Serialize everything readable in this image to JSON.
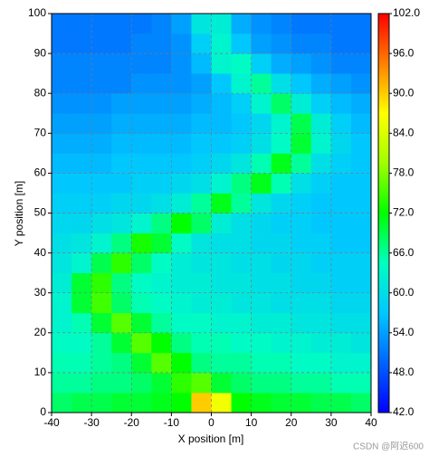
{
  "chart_data": {
    "type": "heatmap",
    "x_label": "X position [m]",
    "y_label": "Y position [m]",
    "x_edges": [
      -40,
      -35,
      -30,
      -25,
      -20,
      -15,
      -10,
      -5,
      0,
      5,
      10,
      15,
      20,
      25,
      30,
      35,
      40
    ],
    "y_edges": [
      0,
      5,
      10,
      15,
      20,
      25,
      30,
      35,
      40,
      45,
      50,
      55,
      60,
      65,
      70,
      75,
      80,
      85,
      90,
      95,
      100
    ],
    "z": [
      [
        68,
        69,
        69,
        70,
        70,
        71,
        72,
        90,
        86,
        72,
        71,
        70,
        70,
        69,
        69,
        68
      ],
      [
        66,
        66,
        67,
        67,
        68,
        70,
        74,
        76,
        70,
        68,
        67,
        67,
        66,
        66,
        65,
        65
      ],
      [
        65,
        65,
        66,
        67,
        70,
        76,
        72,
        67,
        66,
        66,
        65,
        65,
        64,
        64,
        63,
        63
      ],
      [
        64,
        64,
        66,
        70,
        76,
        72,
        67,
        65,
        65,
        64,
        64,
        63,
        63,
        62,
        62,
        61
      ],
      [
        63,
        65,
        70,
        76,
        70,
        66,
        64,
        64,
        63,
        63,
        62,
        62,
        61,
        61,
        60,
        60
      ],
      [
        63,
        70,
        75,
        68,
        65,
        64,
        63,
        62,
        62,
        61,
        61,
        60,
        60,
        60,
        59,
        59
      ],
      [
        62,
        70,
        74,
        67,
        64,
        63,
        62,
        62,
        61,
        61,
        60,
        60,
        59,
        59,
        58,
        58
      ],
      [
        61,
        63,
        69,
        74,
        68,
        64,
        62,
        61,
        61,
        60,
        60,
        59,
        59,
        58,
        58,
        58
      ],
      [
        60,
        61,
        63,
        67,
        73,
        70,
        64,
        61,
        60,
        60,
        59,
        59,
        58,
        58,
        57,
        57
      ],
      [
        59,
        59,
        60,
        61,
        63,
        67,
        72,
        68,
        62,
        60,
        59,
        58,
        58,
        57,
        57,
        57
      ],
      [
        58,
        58,
        58,
        59,
        59,
        60,
        62,
        66,
        71,
        66,
        61,
        59,
        58,
        57,
        57,
        57
      ],
      [
        57,
        57,
        57,
        57,
        58,
        58,
        59,
        60,
        63,
        67,
        71,
        65,
        60,
        58,
        57,
        57
      ],
      [
        56,
        56,
        56,
        57,
        57,
        57,
        57,
        58,
        59,
        61,
        65,
        71,
        66,
        60,
        58,
        57
      ],
      [
        55,
        55,
        55,
        56,
        56,
        56,
        56,
        57,
        57,
        58,
        60,
        64,
        70,
        63,
        59,
        57
      ],
      [
        54,
        54,
        54,
        55,
        55,
        55,
        55,
        56,
        56,
        57,
        59,
        63,
        69,
        62,
        58,
        56
      ],
      [
        53,
        53,
        53,
        54,
        54,
        54,
        54,
        55,
        56,
        58,
        63,
        68,
        62,
        58,
        56,
        55
      ],
      [
        52,
        52,
        52,
        52,
        53,
        53,
        53,
        54,
        57,
        63,
        66,
        60,
        57,
        55,
        54,
        53
      ],
      [
        52,
        52,
        52,
        52,
        52,
        52,
        53,
        56,
        63,
        64,
        58,
        55,
        54,
        53,
        52,
        52
      ],
      [
        51,
        51,
        51,
        51,
        52,
        52,
        53,
        58,
        63,
        57,
        54,
        53,
        52,
        52,
        51,
        51
      ],
      [
        51,
        51,
        51,
        51,
        51,
        52,
        54,
        61,
        62,
        55,
        53,
        52,
        51,
        51,
        51,
        51
      ]
    ],
    "xlim": [
      -40,
      40
    ],
    "xticks": [
      -40,
      -30,
      -20,
      -10,
      0,
      10,
      20,
      30,
      40
    ],
    "ylim": [
      0,
      100
    ],
    "yticks": [
      0,
      10,
      20,
      30,
      40,
      50,
      60,
      70,
      80,
      90,
      100
    ],
    "zlim": [
      42,
      102
    ],
    "zticks": [
      {
        "value": 42,
        "label": "42.0"
      },
      {
        "value": 48,
        "label": "48.0"
      },
      {
        "value": 54,
        "label": "54.0"
      },
      {
        "value": 60,
        "label": "60.0"
      },
      {
        "value": 66,
        "label": "66.0"
      },
      {
        "value": 72,
        "label": "72.0"
      },
      {
        "value": 78,
        "label": "78.0"
      },
      {
        "value": 84,
        "label": "84.0"
      },
      {
        "value": 90,
        "label": "90.0"
      },
      {
        "value": 96,
        "label": "96.0"
      },
      {
        "value": 102,
        "label": "102.0"
      }
    ],
    "colormap": [
      "#0000ff",
      "#0064ff",
      "#00c8ff",
      "#00ffc0",
      "#00ff00",
      "#a0ff00",
      "#ffff00",
      "#ff8000",
      "#ff0000"
    ],
    "grid": true,
    "watermark": "CSDN @阿迟600"
  }
}
